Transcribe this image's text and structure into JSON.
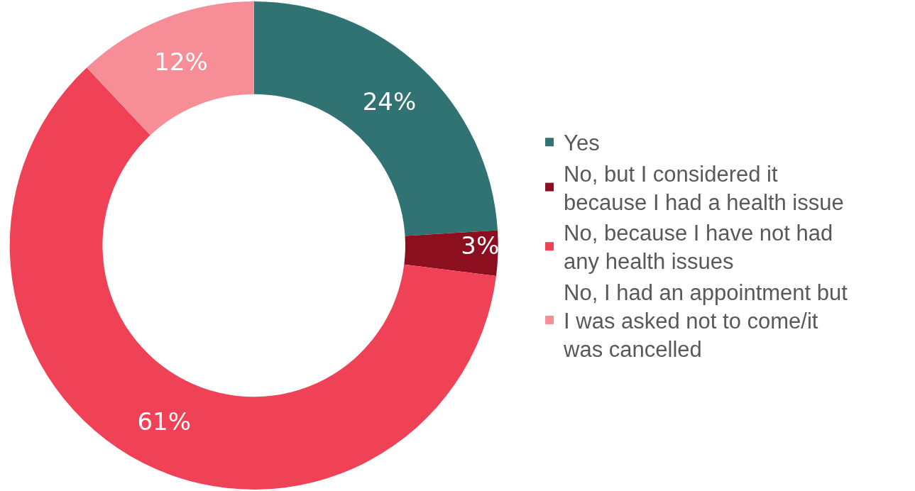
{
  "chart_data": {
    "type": "donut",
    "categories": [
      "Yes",
      "No, but I considered it because I had a health issue",
      "No, because I have not had any health issues",
      "No, I had an appointment but I was asked not to come/it was cancelled"
    ],
    "values": [
      24,
      3,
      61,
      12
    ],
    "colors": [
      "#317372",
      "#8b0f1e",
      "#f04256",
      "#f78d97"
    ],
    "value_labels": [
      "24%",
      "3%",
      "61%",
      "12%"
    ],
    "legend": "right"
  }
}
